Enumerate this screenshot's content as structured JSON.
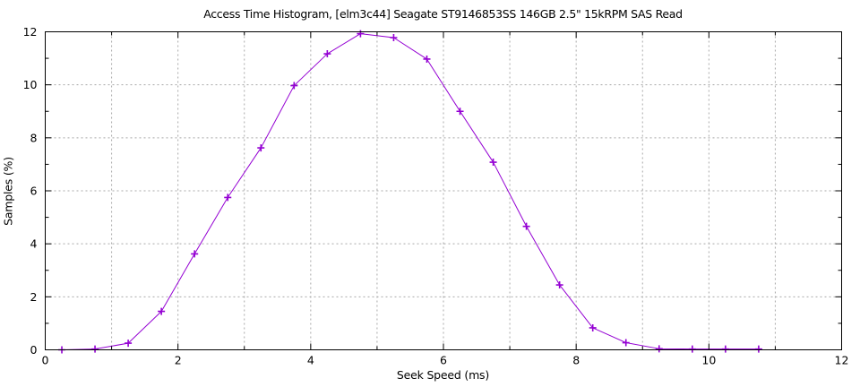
{
  "chart_data": {
    "type": "line",
    "title": "Access Time Histogram, [elm3c44] Seagate ST9146853SS 146GB 2.5\" 15kRPM SAS Read",
    "xlabel": "Seek Speed (ms)",
    "ylabel": "Samples (%)",
    "xlim": [
      0,
      12
    ],
    "ylim": [
      0,
      12
    ],
    "xticks": [
      0,
      2,
      4,
      6,
      8,
      10,
      12
    ],
    "yticks": [
      0,
      2,
      4,
      6,
      8,
      10,
      12
    ],
    "minor_tick_step": 1,
    "grid": {
      "vertical_step": 1,
      "horizontal_step": 2,
      "style": "dashed",
      "color": "#a8a8a8"
    },
    "legend": "none",
    "border_color": "#000000",
    "line_color": "#9400d3",
    "marker": "plus",
    "series": [
      {
        "name": "samples-percent",
        "x": [
          0.25,
          0.75,
          1.25,
          1.75,
          2.25,
          2.75,
          3.25,
          3.75,
          4.25,
          4.75,
          5.25,
          5.75,
          6.25,
          6.75,
          7.25,
          7.75,
          8.25,
          8.75,
          9.25,
          9.75,
          10.25,
          10.75
        ],
        "y": [
          0.0,
          0.03,
          0.25,
          1.45,
          3.62,
          5.75,
          7.62,
          9.97,
          11.17,
          11.93,
          11.78,
          10.97,
          9.0,
          7.08,
          4.66,
          2.45,
          0.83,
          0.27,
          0.04,
          0.03,
          0.03,
          0.03
        ]
      }
    ]
  }
}
